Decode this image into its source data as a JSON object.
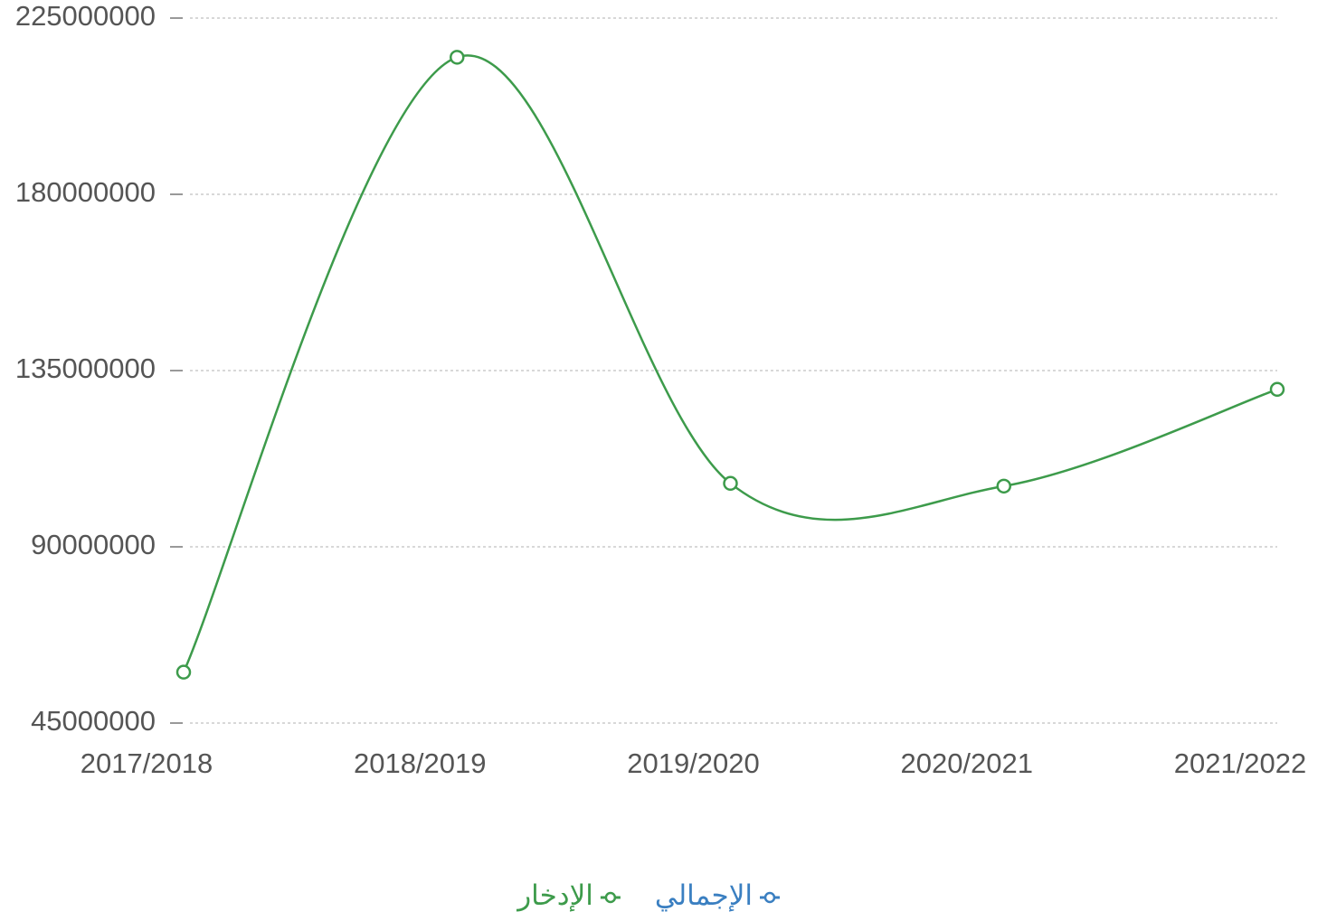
{
  "chart_data": {
    "type": "line",
    "categories": [
      "2017/2018",
      "2018/2019",
      "2019/2020",
      "2020/2021",
      "2021/2022"
    ],
    "series": [
      {
        "name": "الإجمالي",
        "color": "#3a7fc1",
        "values": [
          null,
          null,
          null,
          null,
          null
        ]
      },
      {
        "name": "الإدخار",
        "color": "#3d9b4b",
        "values": [
          58000000,
          215000000,
          106200000,
          105500000,
          130200000
        ]
      }
    ],
    "ylim": [
      45000000,
      225000000
    ],
    "yticks": [
      45000000,
      90000000,
      135000000,
      180000000,
      225000000
    ],
    "grid": true,
    "smooth": true,
    "legend": "bottom"
  }
}
